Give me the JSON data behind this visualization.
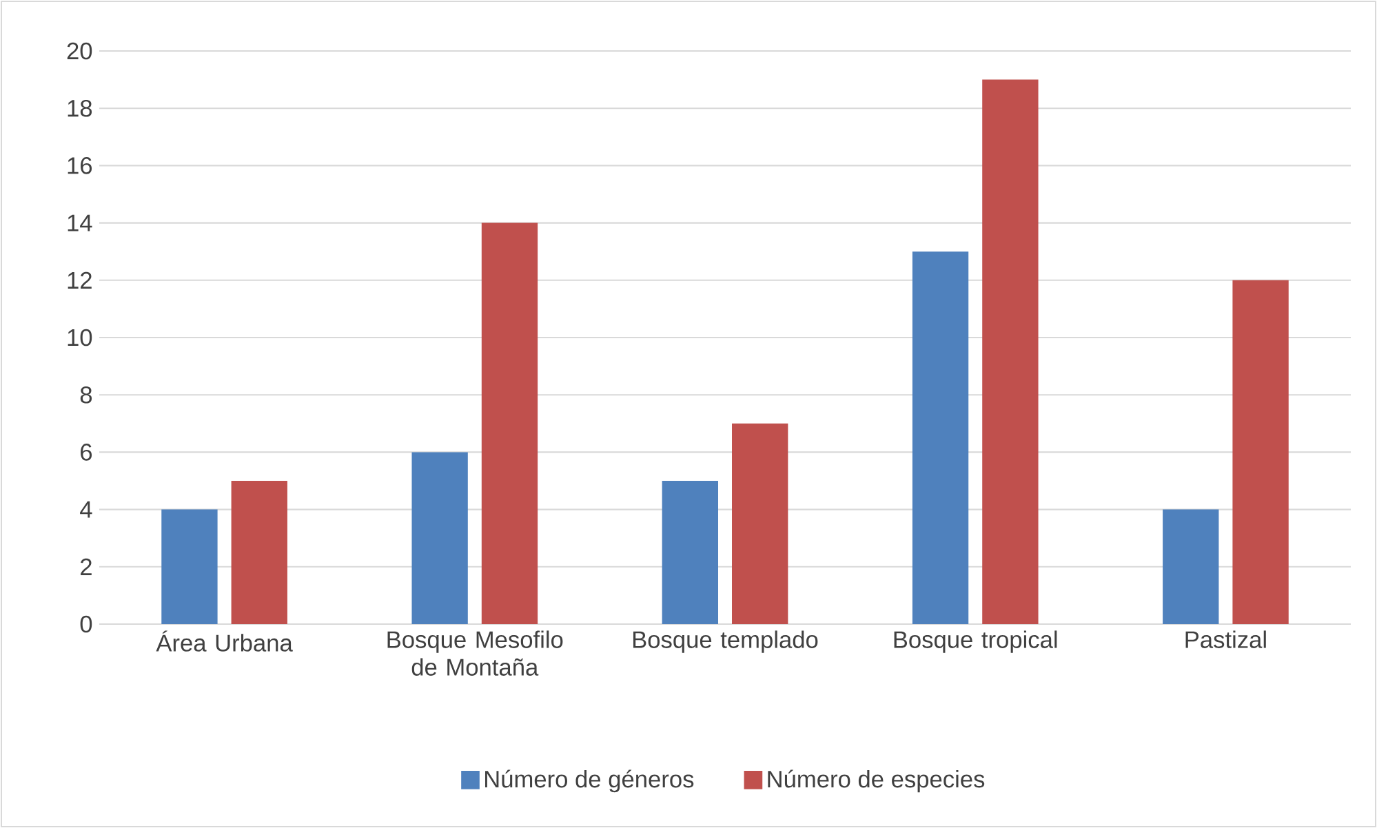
{
  "chart_data": {
    "type": "bar",
    "categories": [
      "Área Urbana",
      "Bosque Mesofilo de Montaña",
      "Bosque templado",
      "Bosque tropical",
      "Pastizal"
    ],
    "series": [
      {
        "name": "Número de géneros",
        "color": "#4f81bd",
        "values": [
          4,
          6,
          5,
          13,
          4
        ]
      },
      {
        "name": "Número de especies",
        "color": "#c0504d",
        "values": [
          5,
          14,
          7,
          19,
          12
        ]
      }
    ],
    "ylim": [
      0,
      20
    ],
    "yticks": [
      0,
      2,
      4,
      6,
      8,
      10,
      12,
      14,
      16,
      18,
      20
    ],
    "grid": "y",
    "legend": "bottom"
  }
}
